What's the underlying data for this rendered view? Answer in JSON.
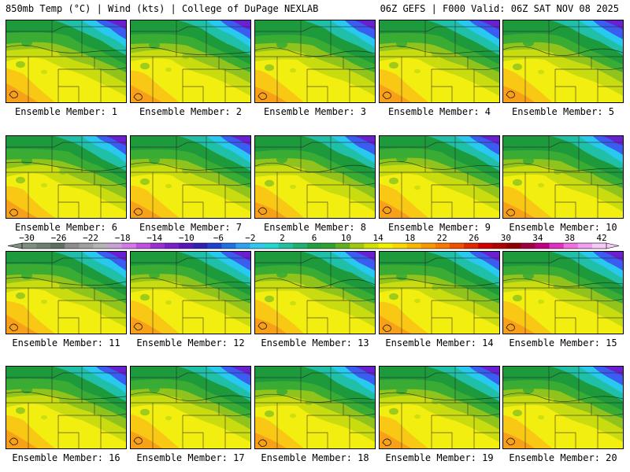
{
  "header": {
    "left": "850mb Temp (°C) | Wind (kts) | College of DuPage NEXLAB",
    "right": "06Z GEFS | F000 Valid: 06Z SAT NOV 08 2025"
  },
  "member_prefix": "Ensemble Member: ",
  "members": [
    {
      "label": "Ensemble Member: 1"
    },
    {
      "label": "Ensemble Member: 2"
    },
    {
      "label": "Ensemble Member: 3"
    },
    {
      "label": "Ensemble Member: 4"
    },
    {
      "label": "Ensemble Member: 5"
    },
    {
      "label": "Ensemble Member: 6"
    },
    {
      "label": "Ensemble Member: 7"
    },
    {
      "label": "Ensemble Member: 8"
    },
    {
      "label": "Ensemble Member: 9"
    },
    {
      "label": "Ensemble Member: 10"
    },
    {
      "label": "Ensemble Member: 11"
    },
    {
      "label": "Ensemble Member: 12"
    },
    {
      "label": "Ensemble Member: 13"
    },
    {
      "label": "Ensemble Member: 14"
    },
    {
      "label": "Ensemble Member: 15"
    },
    {
      "label": "Ensemble Member: 16"
    },
    {
      "label": "Ensemble Member: 17"
    },
    {
      "label": "Ensemble Member: 18"
    },
    {
      "label": "Ensemble Member: 19"
    },
    {
      "label": "Ensemble Member: 20"
    }
  ],
  "colorbar": {
    "tick_labels": [
      "-30",
      "-26",
      "-22",
      "-18",
      "-14",
      "-10",
      "-6",
      "-2",
      "2",
      "6",
      "10",
      "14",
      "18",
      "22",
      "26",
      "30",
      "34",
      "38",
      "42"
    ],
    "colors": [
      "#7f8f7f",
      "#6f7f6f",
      "#5f6f5f",
      "#8c8c8c",
      "#a0a0a0",
      "#b4b4b4",
      "#c8a0d8",
      "#d478e8",
      "#c050e0",
      "#9a30d0",
      "#7a20c8",
      "#5a14b8",
      "#3020b0",
      "#2040d0",
      "#2070e0",
      "#30a0f0",
      "#30c8f0",
      "#20d8d0",
      "#20c0a0",
      "#20b070",
      "#20a040",
      "#30a030",
      "#60b020",
      "#a0c810",
      "#d0e000",
      "#f0f000",
      "#f8d800",
      "#f8b800",
      "#f89800",
      "#f87800",
      "#f05000",
      "#e02800",
      "#d00000",
      "#b00000",
      "#900000",
      "#a00040",
      "#c00080",
      "#e030c0",
      "#f070e0",
      "#f0a0f0",
      "#f8c8f8"
    ]
  },
  "map_palette": {
    "purple": "#6a1fd0",
    "blue": "#3a5cf0",
    "cyan": "#28c8f0",
    "teal": "#20c0a8",
    "green_dark": "#1c9a3c",
    "green": "#3aac34",
    "lime": "#90c41c",
    "yellow_green": "#c8dc10",
    "yellow": "#f2ee10",
    "gold": "#f8c814",
    "orange": "#f8a018"
  }
}
